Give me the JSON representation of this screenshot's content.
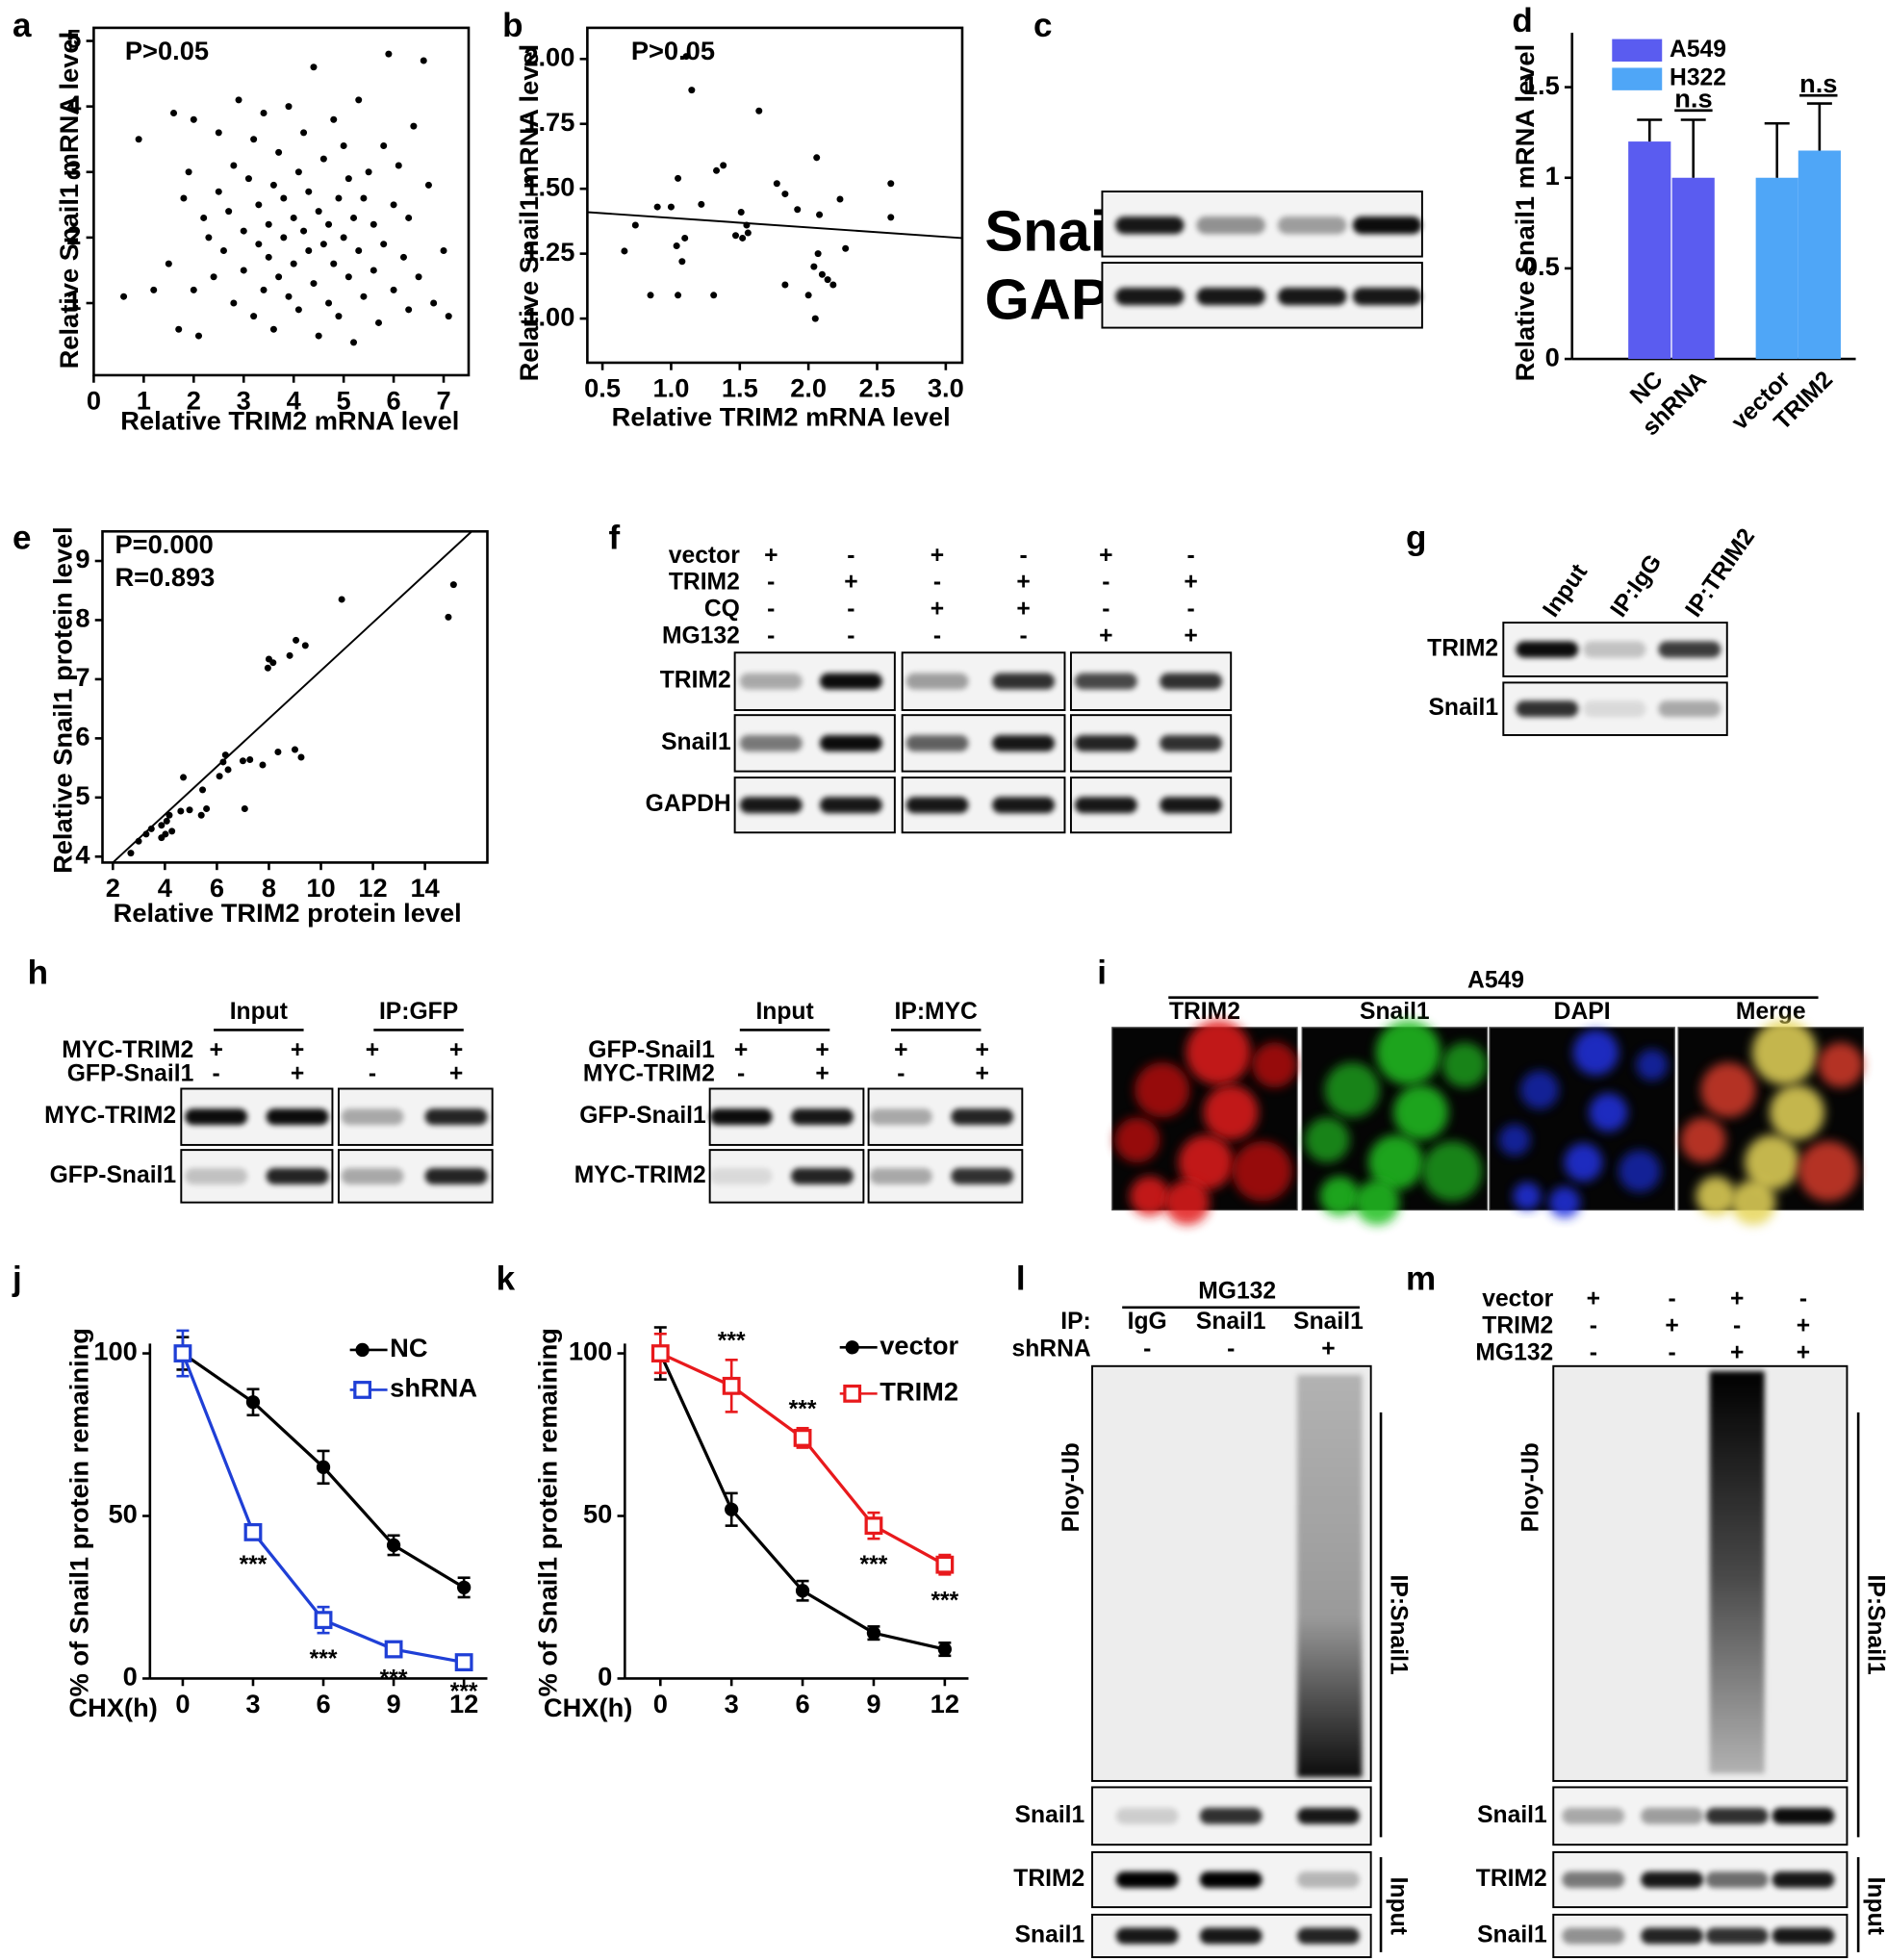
{
  "chart_data": [
    {
      "type": "scatter",
      "label": "a",
      "xlabel": "Relative TRIM2  mRNA level",
      "ylabel": "Relative Snail1  mRNA level",
      "annotations": [
        "P>0.05"
      ],
      "color": "#000000",
      "x": [
        0.6,
        0.9,
        1.2,
        1.5,
        1.6,
        1.7,
        1.8,
        1.9,
        2.0,
        2.0,
        2.1,
        2.2,
        2.3,
        2.4,
        2.5,
        2.5,
        2.6,
        2.7,
        2.8,
        2.8,
        2.9,
        3.0,
        3.0,
        3.1,
        3.2,
        3.2,
        3.3,
        3.3,
        3.4,
        3.4,
        3.5,
        3.5,
        3.6,
        3.6,
        3.7,
        3.7,
        3.8,
        3.8,
        3.9,
        3.9,
        4.0,
        4.0,
        4.1,
        4.1,
        4.2,
        4.2,
        4.3,
        4.3,
        4.4,
        4.4,
        4.5,
        4.5,
        4.6,
        4.6,
        4.7,
        4.7,
        4.8,
        4.8,
        4.9,
        4.9,
        5.0,
        5.0,
        5.1,
        5.1,
        5.2,
        5.2,
        5.3,
        5.3,
        5.4,
        5.4,
        5.5,
        5.6,
        5.6,
        5.7,
        5.8,
        5.8,
        5.9,
        6.0,
        6.0,
        6.1,
        6.2,
        6.3,
        6.3,
        6.4,
        6.5,
        6.6,
        6.7,
        6.8,
        7.0,
        7.1
      ],
      "y": [
        1.1,
        3.5,
        1.2,
        1.6,
        3.9,
        0.6,
        2.6,
        3.0,
        1.2,
        3.8,
        0.5,
        2.3,
        2.0,
        1.4,
        3.6,
        2.7,
        1.8,
        2.4,
        1.0,
        3.1,
        4.1,
        2.1,
        1.5,
        2.9,
        0.8,
        3.5,
        1.9,
        2.5,
        1.2,
        3.9,
        2.2,
        1.7,
        2.8,
        0.6,
        3.3,
        1.4,
        2.0,
        2.6,
        1.1,
        4.0,
        2.3,
        1.6,
        3.0,
        0.9,
        2.1,
        3.6,
        1.8,
        2.7,
        1.3,
        4.6,
        2.4,
        0.5,
        3.2,
        1.9,
        2.2,
        1.0,
        3.8,
        1.6,
        2.6,
        0.8,
        2.0,
        3.4,
        1.4,
        2.9,
        0.4,
        2.3,
        1.8,
        4.1,
        2.6,
        1.1,
        3.0,
        1.5,
        2.2,
        0.7,
        3.4,
        1.9,
        4.8,
        2.5,
        1.2,
        3.1,
        1.7,
        0.9,
        2.3,
        3.7,
        1.4,
        4.7,
        2.8,
        1.0,
        1.8,
        0.8
      ],
      "xlim": [
        0,
        7.5
      ],
      "ylim": [
        -0.1,
        5.2
      ],
      "xticks": [
        0,
        1,
        2,
        3,
        4,
        5,
        6,
        7
      ],
      "yticks": [
        1,
        2,
        3,
        4,
        5
      ]
    },
    {
      "type": "scatter",
      "label": "b",
      "xlabel": "Relative TRIM2   mRNA level",
      "ylabel": "Relative Snail1  mRNA level",
      "annotations": [
        "P>0.05"
      ],
      "color": "#000000",
      "x": [
        1.11,
        1.15,
        1.05,
        1.33,
        1.38,
        1.64,
        1.22,
        1.0,
        0.9,
        0.74,
        0.66,
        0.85,
        1.05,
        1.31,
        1.04,
        1.1,
        1.08,
        1.51,
        1.55,
        1.56,
        1.47,
        1.52,
        1.77,
        1.83,
        1.92,
        2.06,
        2.08,
        2.23,
        2.27,
        2.04,
        2.1,
        2.14,
        2.18,
        2.0,
        2.05,
        1.83,
        2.6,
        2.6,
        2.07
      ],
      "y": [
        2.01,
        1.88,
        1.54,
        1.57,
        1.59,
        1.8,
        1.44,
        1.43,
        1.43,
        1.36,
        1.26,
        1.09,
        1.09,
        1.09,
        1.28,
        1.31,
        1.22,
        1.41,
        1.36,
        1.33,
        1.32,
        1.31,
        1.52,
        1.48,
        1.42,
        1.62,
        1.4,
        1.46,
        1.27,
        1.2,
        1.17,
        1.15,
        1.13,
        1.09,
        1.0,
        1.13,
        1.52,
        1.39,
        1.25
      ],
      "fit_line": {
        "x": [
          0.39,
          3.12
        ],
        "y": [
          1.41,
          1.31
        ]
      },
      "xlim": [
        0.39,
        3.12
      ],
      "ylim": [
        0.83,
        2.12
      ],
      "xticks": [
        0.5,
        {
          "value": 1,
          "label": "1.0"
        },
        1.5,
        {
          "value": 2,
          "label": "2.0"
        },
        2.5,
        {
          "value": 3,
          "label": "3.0"
        }
      ],
      "yticks": [
        {
          "value": 1,
          "label": "1.00"
        },
        1.25,
        {
          "value": 1.5,
          "label": "1.50"
        },
        1.75,
        {
          "value": 2,
          "label": "2.00"
        }
      ]
    },
    {
      "type": "bar",
      "label": "d",
      "ylabel": "Relative Snail1 mRNA level",
      "annotations": [
        "n.s",
        "n.s"
      ],
      "categories": [
        "NC",
        "shRNA",
        "vector",
        "TRIM2"
      ],
      "series": [
        {
          "name": "A549",
          "color": "#5a5cf0",
          "values": [
            1.2,
            1.0,
            null,
            null
          ],
          "errors": [
            0.12,
            0.32,
            null,
            null
          ]
        },
        {
          "name": "H322",
          "color": "#4fa6f7",
          "values": [
            null,
            null,
            1.0,
            1.15
          ],
          "errors": [
            null,
            null,
            0.3,
            0.26
          ]
        }
      ],
      "ylim": [
        0,
        1.8
      ],
      "yticks": [
        0,
        0.5,
        1,
        1.5
      ]
    },
    {
      "type": "scatter",
      "label": "e",
      "xlabel": "Relative TRIM2   protein level",
      "ylabel": "Relative Snail1   protein level",
      "annotations": [
        "P=0.000",
        "R=0.893"
      ],
      "color": "#000000",
      "x": [
        10.8,
        15.1,
        14.9,
        9.04,
        9.4,
        8.8,
        8.0,
        8.16,
        7.96,
        9.0,
        9.24,
        8.35,
        7.76,
        7.27,
        7.0,
        6.33,
        6.24,
        6.43,
        6.1,
        7.07,
        5.45,
        5.6,
        5.4,
        4.95,
        4.61,
        4.71,
        4.17,
        4.07,
        3.87,
        4.02,
        3.48,
        3.28,
        2.99,
        2.69,
        4.27,
        3.87
      ],
      "y": [
        8.35,
        8.6,
        8.05,
        7.66,
        7.57,
        7.4,
        7.34,
        7.28,
        7.19,
        5.81,
        5.68,
        5.77,
        5.55,
        5.64,
        5.62,
        5.72,
        5.6,
        5.47,
        5.36,
        4.81,
        5.13,
        4.81,
        4.7,
        4.79,
        4.77,
        5.34,
        4.7,
        4.6,
        4.53,
        4.38,
        4.47,
        4.38,
        4.26,
        4.06,
        4.43,
        4.32
      ],
      "fit_line": {
        "x": [
          2.0,
          15.8
        ],
        "y": [
          3.9,
          9.5
        ]
      },
      "xlim": [
        1.6,
        16.4
      ],
      "ylim": [
        3.9,
        9.5
      ],
      "xticks": [
        2,
        4,
        6,
        8,
        10,
        12,
        14
      ],
      "yticks": [
        4,
        5,
        6,
        7,
        8,
        9
      ]
    },
    {
      "type": "line",
      "label": "j",
      "xlabel": "CHX(h)",
      "ylabel": "% of Snail1 protein remaining",
      "x": [
        0,
        3,
        6,
        9,
        12
      ],
      "series": [
        {
          "name": "NC",
          "color": "#000000",
          "marker": "circle",
          "values": [
            100,
            85,
            65,
            41,
            28
          ],
          "errors": [
            5,
            4,
            5,
            3,
            3
          ]
        },
        {
          "name": "shRNA",
          "color": "#1f3fd6",
          "marker": "square",
          "values": [
            100,
            45,
            18,
            9,
            5
          ],
          "errors": [
            7,
            2,
            4,
            1,
            1
          ],
          "significance": [
            null,
            "***",
            "***",
            "***",
            "***"
          ]
        }
      ],
      "xlim": [
        -1.4,
        13
      ],
      "ylim": [
        0,
        103
      ],
      "xticks": [
        0,
        3,
        6,
        9,
        12
      ],
      "yticks": [
        0,
        50,
        100
      ]
    },
    {
      "type": "line",
      "label": "k",
      "xlabel": "CHX(h)",
      "ylabel": "% of Snail1 protein remaining",
      "x": [
        0,
        3,
        6,
        9,
        12
      ],
      "series": [
        {
          "name": "vector",
          "color": "#000000",
          "marker": "circle",
          "values": [
            100,
            52,
            27,
            14,
            9
          ],
          "errors": [
            8,
            5,
            3,
            2,
            2
          ]
        },
        {
          "name": "TRIM2",
          "color": "#e8191c",
          "marker": "square",
          "values": [
            100,
            90,
            74,
            47,
            35
          ],
          "errors": [
            6,
            8,
            3,
            4,
            3
          ],
          "significance": [
            null,
            "***",
            "***",
            "***",
            "***"
          ]
        }
      ],
      "xlim": [
        -1.5,
        13
      ],
      "ylim": [
        0,
        103
      ],
      "xticks": [
        0,
        3,
        6,
        9,
        12
      ],
      "yticks": [
        0,
        50,
        100
      ]
    }
  ],
  "blots": {
    "c": {
      "label": "c",
      "rows": [
        "Snai",
        "GAP"
      ]
    },
    "f": {
      "label": "f",
      "treatments": [
        {
          "name": "vector",
          "signs": [
            "+",
            "-",
            "+",
            "-",
            "+",
            "-"
          ]
        },
        {
          "name": "TRIM2",
          "signs": [
            "-",
            "+",
            "-",
            "+",
            "-",
            "+"
          ]
        },
        {
          "name": "CQ",
          "signs": [
            "-",
            "-",
            "+",
            "+",
            "-",
            "-"
          ]
        },
        {
          "name": "MG132",
          "signs": [
            "-",
            "-",
            "-",
            "-",
            "+",
            "+"
          ]
        }
      ],
      "rows": [
        "TRIM2",
        "Snail1",
        "GAPDH"
      ]
    },
    "g": {
      "label": "g",
      "lanes": [
        "Input",
        "IP:IgG",
        "IP:TRIM2"
      ],
      "rows": [
        "TRIM2",
        "Snail1"
      ]
    },
    "h": {
      "label": "h",
      "panels": [
        {
          "groups": [
            "Input",
            "IP:GFP"
          ],
          "treatments": [
            {
              "name": "MYC-TRIM2",
              "signs": [
                "+",
                "+",
                "+",
                "+"
              ]
            },
            {
              "name": "GFP-Snail1",
              "signs": [
                "-",
                "+",
                "-",
                "+"
              ]
            }
          ],
          "rows": [
            "MYC-TRIM2",
            "GFP-Snail1"
          ]
        },
        {
          "groups": [
            "Input",
            "IP:MYC"
          ],
          "treatments": [
            {
              "name": "GFP-Snail1",
              "signs": [
                "+",
                "+",
                "+",
                "+"
              ]
            },
            {
              "name": "MYC-TRIM2",
              "signs": [
                "-",
                "+",
                "-",
                "+"
              ]
            }
          ],
          "rows": [
            "GFP-Snail1",
            "MYC-TRIM2"
          ]
        }
      ]
    },
    "i": {
      "label": "i",
      "title": "A549",
      "channels": [
        "TRIM2",
        "Snail1",
        "DAPI",
        "Merge"
      ]
    },
    "l": {
      "label": "l",
      "header": "MG132",
      "treatments": [
        {
          "name": "IP:",
          "signs": [
            "IgG",
            "Snail1",
            "Snail1"
          ]
        },
        {
          "name": "shRNA",
          "signs": [
            "-",
            "-",
            "+"
          ]
        }
      ],
      "smear_label": "Ploy-Ub",
      "side_labels": [
        "IP:Snail1",
        "Input"
      ],
      "rows": [
        "Snail1",
        "TRIM2",
        "Snail1"
      ]
    },
    "m": {
      "label": "m",
      "treatments": [
        {
          "name": "vector",
          "signs": [
            "+",
            "-",
            "+",
            "-"
          ]
        },
        {
          "name": "TRIM2",
          "signs": [
            "-",
            "+",
            "-",
            "+"
          ]
        },
        {
          "name": "MG132",
          "signs": [
            "-",
            "-",
            "+",
            "+"
          ]
        }
      ],
      "smear_label": "Ploy-Ub",
      "side_labels": [
        "IP:Snail1",
        "Input"
      ],
      "rows": [
        "Snail1",
        "TRIM2",
        "Snail1"
      ]
    }
  }
}
